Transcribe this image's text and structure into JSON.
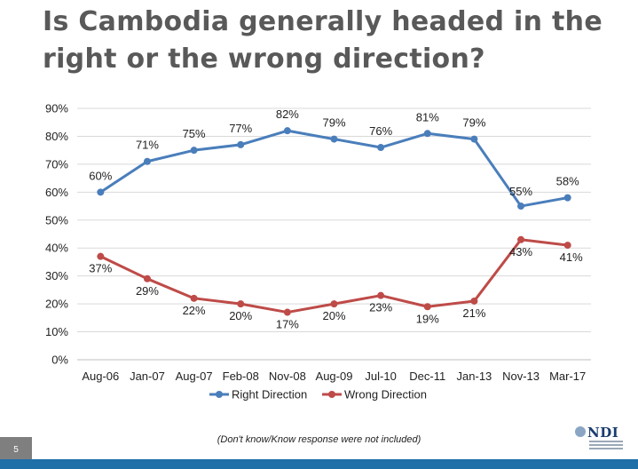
{
  "title": "Is Cambodia generally headed in the right or the wrong direction?",
  "footnote": "(Don't know/Know response were not included)",
  "page_number": "5",
  "logo_text": "NDI",
  "colors": {
    "right_direction": "#4a7ebb",
    "wrong_direction": "#be4b48",
    "gridline": "#d9d9d9",
    "bottom_bar": "#1f6fa8"
  },
  "chart_data": {
    "type": "line",
    "title": "Is Cambodia generally headed in the right or the wrong direction?",
    "categories": [
      "Aug-06",
      "Jan-07",
      "Aug-07",
      "Feb-08",
      "Nov-08",
      "Aug-09",
      "Jul-10",
      "Dec-11",
      "Jan-13",
      "Nov-13",
      "Mar-17"
    ],
    "y_ticks": [
      "0%",
      "10%",
      "20%",
      "30%",
      "40%",
      "50%",
      "60%",
      "70%",
      "80%",
      "90%"
    ],
    "ylim": [
      0,
      90
    ],
    "grid": true,
    "legend_position": "bottom",
    "series": [
      {
        "name": "Right Direction",
        "color": "#4a7ebb",
        "values": [
          60,
          71,
          75,
          77,
          82,
          79,
          76,
          81,
          79,
          55,
          58
        ],
        "labels": [
          "60%",
          "71%",
          "75%",
          "77%",
          "82%",
          "79%",
          "76%",
          "81%",
          "79%",
          "55%",
          "58%"
        ]
      },
      {
        "name": "Wrong Direction",
        "color": "#be4b48",
        "values": [
          37,
          29,
          22,
          20,
          17,
          20,
          23,
          19,
          21,
          43,
          41
        ],
        "labels": [
          "37%",
          "29%",
          "22%",
          "20%",
          "17%",
          "20%",
          "23%",
          "19%",
          "21%",
          "43%",
          "41%"
        ]
      }
    ]
  }
}
